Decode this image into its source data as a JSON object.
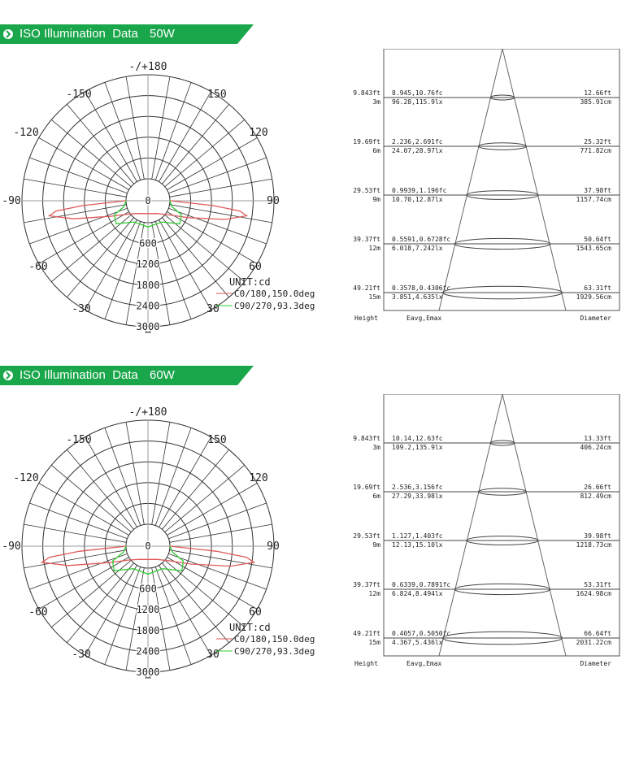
{
  "sections": [
    {
      "title": "ISO Illumination  Data",
      "power": "50W",
      "polar": {
        "angle_labels": {
          "top": "-/+180",
          "a150l": "-150",
          "a150r": "150",
          "a120l": "-120",
          "a120r": "120",
          "a90l": "-90",
          "a90r": "90",
          "a60l": "-60",
          "a60r": "60",
          "a30l": "-30",
          "a30r": "30",
          "bottom": "0"
        },
        "radial_labels": [
          "0",
          "600",
          "1200",
          "1800",
          "2400",
          "3000"
        ],
        "unit": "UNIT:cd",
        "legend": [
          "C0/180,150.0deg",
          "C90/270,93.3deg"
        ]
      },
      "cone": {
        "rows": [
          {
            "ft": "9.843ft",
            "m": "3m",
            "fc": "8.945,10.76fc",
            "lx": "96.28,115.9lx",
            "dft": "12.66ft",
            "dcm": "385.91cm"
          },
          {
            "ft": "19.69ft",
            "m": "6m",
            "fc": "2.236,2.691fc",
            "lx": "24.07,28.97lx",
            "dft": "25.32ft",
            "dcm": "771.82cm"
          },
          {
            "ft": "29.53ft",
            "m": "9m",
            "fc": "0.9939,1.196fc",
            "lx": "10.70,12.87lx",
            "dft": "37.98ft",
            "dcm": "1157.74cm"
          },
          {
            "ft": "39.37ft",
            "m": "12m",
            "fc": "0.5591,0.6728fc",
            "lx": "6.018,7.242lx",
            "dft": "50.64ft",
            "dcm": "1543.65cm"
          },
          {
            "ft": "49.21ft",
            "m": "15m",
            "fc": "0.3578,0.4306fc",
            "lx": "3.851,4.635lx",
            "dft": "63.31ft",
            "dcm": "1929.56cm"
          }
        ],
        "footer": {
          "height": "Height",
          "eavg": "Eavg,Emax",
          "diameter": "Diameter"
        }
      }
    },
    {
      "title": "ISO Illumination  Data",
      "power": "60W",
      "polar": {
        "angle_labels": {
          "top": "-/+180",
          "a150l": "-150",
          "a150r": "150",
          "a120l": "-120",
          "a120r": "120",
          "a90l": "-90",
          "a90r": "90",
          "a60l": "-60",
          "a60r": "60",
          "a30l": "-30",
          "a30r": "30",
          "bottom": "0"
        },
        "radial_labels": [
          "0",
          "600",
          "1200",
          "1800",
          "2400",
          "3000"
        ],
        "unit": "UNIT:cd",
        "legend": [
          "C0/180,150.0deg",
          "C90/270,93.3deg"
        ]
      },
      "cone": {
        "rows": [
          {
            "ft": "9.843ft",
            "m": "3m",
            "fc": "10.14,12.63fc",
            "lx": "109.2,135.9lx",
            "dft": "13.33ft",
            "dcm": "406.24cm"
          },
          {
            "ft": "19.69ft",
            "m": "6m",
            "fc": "2.536,3.156fc",
            "lx": "27.29,33.98lx",
            "dft": "26.66ft",
            "dcm": "812.49cm"
          },
          {
            "ft": "29.53ft",
            "m": "9m",
            "fc": "1.127,1.403fc",
            "lx": "12.13,15.10lx",
            "dft": "39.98ft",
            "dcm": "1218.73cm"
          },
          {
            "ft": "39.37ft",
            "m": "12m",
            "fc": "0.6339,0.7891fc",
            "lx": "6.824,8.494lx",
            "dft": "53.31ft",
            "dcm": "1624.98cm"
          },
          {
            "ft": "49.21ft",
            "m": "15m",
            "fc": "0.4057,0.5050fc",
            "lx": "4.367,5.436lx",
            "dft": "66.64ft",
            "dcm": "2031.22cm"
          }
        ],
        "footer": {
          "height": "Height",
          "eavg": "Eavg,Emax",
          "diameter": "Diameter"
        }
      }
    }
  ],
  "colors": {
    "banner": "#1aa64a",
    "c0": "#e05a5a",
    "c90": "#33cc33",
    "grid": "#333333"
  },
  "chart_data": [
    {
      "type": "polar",
      "title": "",
      "unit": "cd",
      "angle_ticks": [
        -180,
        -150,
        -120,
        -90,
        -60,
        -30,
        0,
        30,
        60,
        90,
        120,
        150,
        180
      ],
      "radial_ticks": [
        0,
        600,
        1200,
        1800,
        2400,
        3000
      ],
      "series": [
        {
          "name": "C0/180,150.0deg",
          "angles": [
            -90,
            -80,
            -75,
            -70,
            -60,
            -45,
            -30,
            -15,
            0,
            15,
            30,
            45,
            60,
            70,
            75,
            80,
            90
          ],
          "values": [
            0,
            1400,
            2300,
            2600,
            2000,
            950,
            450,
            300,
            270,
            300,
            500,
            1100,
            2100,
            2600,
            2300,
            1400,
            0
          ]
        },
        {
          "name": "C90/270,93.3deg",
          "angles": [
            -90,
            -60,
            -45,
            -30,
            -15,
            0,
            15,
            30,
            45,
            60,
            90
          ],
          "values": [
            0,
            180,
            800,
            1300,
            950,
            1280,
            950,
            1300,
            800,
            180,
            0
          ]
        }
      ]
    },
    {
      "type": "table",
      "title": "",
      "columns": [
        "Height",
        "Eavg,Emax",
        "Diameter"
      ],
      "heights_m": [
        3,
        6,
        9,
        12,
        15
      ],
      "diameters_cm": [
        385.91,
        771.82,
        1157.74,
        1543.65,
        1929.56
      ]
    },
    {
      "type": "polar",
      "title": "",
      "unit": "cd",
      "angle_ticks": [
        -180,
        -150,
        -120,
        -90,
        -60,
        -30,
        0,
        30,
        60,
        90,
        120,
        150,
        180
      ],
      "radial_ticks": [
        0,
        600,
        1200,
        1800,
        2400,
        3000
      ],
      "series": [
        {
          "name": "C0/180,150.0deg",
          "angles": [
            -90,
            -80,
            -75,
            -70,
            -60,
            -45,
            -30,
            -15,
            0,
            15,
            30,
            45,
            60,
            70,
            75,
            80,
            90
          ],
          "values": [
            0,
            1500,
            2500,
            2850,
            2200,
            1050,
            500,
            330,
            300,
            330,
            550,
            1200,
            2300,
            2850,
            2500,
            1500,
            0
          ]
        },
        {
          "name": "C90/270,93.3deg",
          "angles": [
            -90,
            -60,
            -45,
            -30,
            -15,
            0,
            15,
            30,
            45,
            60,
            90
          ],
          "values": [
            0,
            200,
            880,
            1430,
            1050,
            1400,
            1050,
            1430,
            880,
            200,
            0
          ]
        }
      ]
    },
    {
      "type": "table",
      "title": "",
      "columns": [
        "Height",
        "Eavg,Emax",
        "Diameter"
      ],
      "heights_m": [
        3,
        6,
        9,
        12,
        15
      ],
      "diameters_cm": [
        406.24,
        812.49,
        1218.73,
        1624.98,
        2031.22
      ]
    }
  ]
}
